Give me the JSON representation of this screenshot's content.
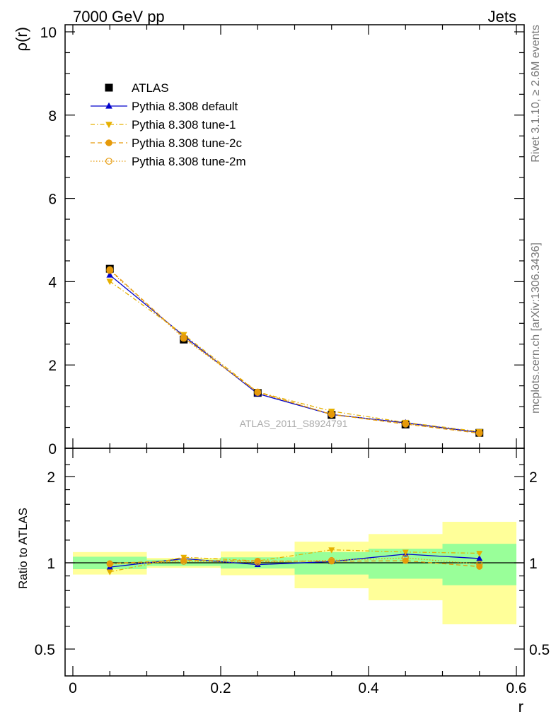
{
  "header": {
    "left": "7000 GeV pp",
    "right": "Jets"
  },
  "side_labels": {
    "rivet": "Rivet 3.1.10, ≥ 2.6M events",
    "mcplots": "mcplots.cern.ch [arXiv:1306.3436]"
  },
  "watermark": "ATLAS_2011_S8924791",
  "chart_data": [
    {
      "type": "line",
      "panel": "main",
      "ylabel": "ρ(r)",
      "xlim": [
        -0.01,
        0.6
      ],
      "ylim": [
        0,
        10.2
      ],
      "y_ticks": [
        0,
        2,
        4,
        6,
        8,
        10
      ],
      "legend": {
        "placement": "top-left"
      },
      "x": [
        0.05,
        0.15,
        0.25,
        0.35,
        0.45,
        0.55
      ],
      "series": [
        {
          "name": "ATLAS",
          "color": "#000000",
          "marker": "square",
          "line": "none",
          "values": [
            4.31,
            2.61,
            1.33,
            0.8,
            0.57,
            0.37
          ]
        },
        {
          "name": "Pythia 8.308 default",
          "color": "#0000cc",
          "marker": "triangle-up",
          "line": "solid",
          "values": [
            4.16,
            2.7,
            1.31,
            0.81,
            0.61,
            0.38
          ]
        },
        {
          "name": "Pythia 8.308 tune-1",
          "color": "#e6b000",
          "marker": "triangle-down",
          "line": "dashdot",
          "values": [
            4.01,
            2.73,
            1.35,
            0.89,
            0.62,
            0.4
          ]
        },
        {
          "name": "Pythia 8.308 tune-2c",
          "color": "#e69a0a",
          "marker": "circle-filled",
          "line": "dashed",
          "values": [
            4.29,
            2.66,
            1.35,
            0.81,
            0.58,
            0.36
          ]
        },
        {
          "name": "Pythia 8.308 tune-2m",
          "color": "#e69a0a",
          "marker": "circle-open",
          "line": "dotted",
          "values": [
            4.27,
            2.64,
            1.34,
            0.82,
            0.59,
            0.37
          ]
        }
      ]
    },
    {
      "type": "line",
      "panel": "ratio",
      "ylabel": "Ratio to ATLAS",
      "xlabel": "r",
      "xlim": [
        -0.01,
        0.6
      ],
      "ylim": [
        0.41,
        2.3
      ],
      "yscale": "log",
      "y_ticks": [
        0.5,
        1,
        2
      ],
      "x_ticks": [
        0,
        0.2,
        0.4,
        0.6
      ],
      "bin_edges": [
        0.0,
        0.1,
        0.2,
        0.3,
        0.4,
        0.5,
        0.6
      ],
      "band_inner": {
        "color": "#99ff99",
        "low": [
          0.95,
          0.975,
          0.955,
          0.91,
          0.88,
          0.835
        ],
        "high": [
          1.05,
          1.025,
          1.045,
          1.09,
          1.12,
          1.165
        ]
      },
      "band_outer": {
        "color": "#ffff99",
        "low": [
          0.91,
          0.96,
          0.905,
          0.815,
          0.74,
          0.61
        ],
        "high": [
          1.09,
          1.04,
          1.095,
          1.185,
          1.26,
          1.39
        ]
      },
      "x": [
        0.05,
        0.15,
        0.25,
        0.35,
        0.45,
        0.55
      ],
      "series": [
        {
          "name": "Pythia 8.308 default",
          "color": "#0000cc",
          "marker": "triangle-up",
          "line": "solid",
          "values": [
            0.966,
            1.034,
            0.985,
            1.01,
            1.072,
            1.035
          ]
        },
        {
          "name": "Pythia 8.308 tune-1",
          "color": "#e6b000",
          "marker": "triangle-down",
          "line": "dashdot",
          "values": [
            0.93,
            1.046,
            1.015,
            1.11,
            1.09,
            1.08
          ]
        },
        {
          "name": "Pythia 8.308 tune-2c",
          "color": "#e69a0a",
          "marker": "circle-filled",
          "line": "dashed",
          "values": [
            0.995,
            1.02,
            1.015,
            1.012,
            1.017,
            0.97
          ]
        },
        {
          "name": "Pythia 8.308 tune-2m",
          "color": "#e69a0a",
          "marker": "circle-open",
          "line": "dotted",
          "values": [
            0.99,
            1.01,
            1.005,
            1.02,
            1.04,
            0.99
          ]
        }
      ]
    }
  ]
}
